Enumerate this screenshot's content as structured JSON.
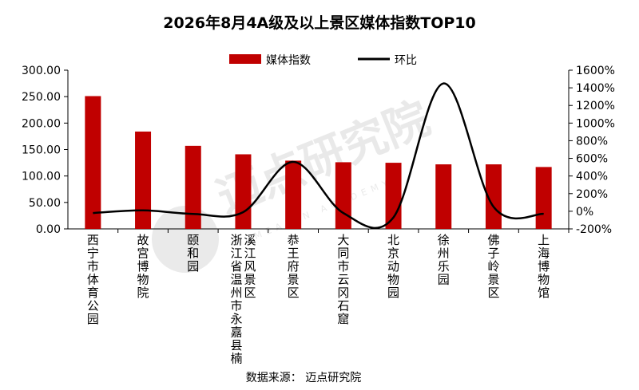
{
  "chart_data": {
    "type": "bar",
    "title": "2026年8月4A级及以上景区媒体指数TOP10",
    "categories": [
      "西宁市体育公园",
      "故宫博物院",
      "颐和园",
      "浙江省温州市永嘉县楠溪江风景区",
      "恭王府景区",
      "大同市云冈石窟",
      "北京动物园",
      "徐州乐园",
      "佛子岭景区",
      "上海博物馆"
    ],
    "category_lines": [
      [
        "西宁市体育公园"
      ],
      [
        "故宫博物院"
      ],
      [
        "颐和园"
      ],
      [
        "浙江省温州市永嘉县楠",
        "溪江风景区"
      ],
      [
        "恭王府景区"
      ],
      [
        "大同市云冈石窟"
      ],
      [
        "北京动物园"
      ],
      [
        "徐州乐园"
      ],
      [
        "佛子岭景区"
      ],
      [
        "上海博物馆"
      ]
    ],
    "series": [
      {
        "name": "媒体指数",
        "type": "bar",
        "axis": "left",
        "color": "#c00000",
        "values": [
          251,
          184,
          157,
          141,
          129,
          126,
          125,
          122,
          122,
          117
        ]
      },
      {
        "name": "环比",
        "type": "line",
        "axis": "right",
        "color": "#000000",
        "values": [
          -20,
          10,
          -30,
          -10,
          560,
          -20,
          -70,
          1450,
          50,
          -30
        ]
      }
    ],
    "y_left": {
      "min": 0,
      "max": 300,
      "step": 50,
      "tick_labels": [
        "0.00",
        "50.00",
        "100.00",
        "150.00",
        "200.00",
        "250.00",
        "300.00"
      ]
    },
    "y_right": {
      "min": -200,
      "max": 1600,
      "step": 200,
      "tick_labels": [
        "-200%",
        "0%",
        "200%",
        "400%",
        "600%",
        "800%",
        "1000%",
        "1200%",
        "1400%",
        "1600%"
      ]
    },
    "legend_position": "top-center",
    "grid": false
  },
  "source_note": "数据来源： 迈点研究院",
  "watermark": {
    "text": "迈点研究院",
    "subtext": "MEADIN ACADEMY"
  }
}
